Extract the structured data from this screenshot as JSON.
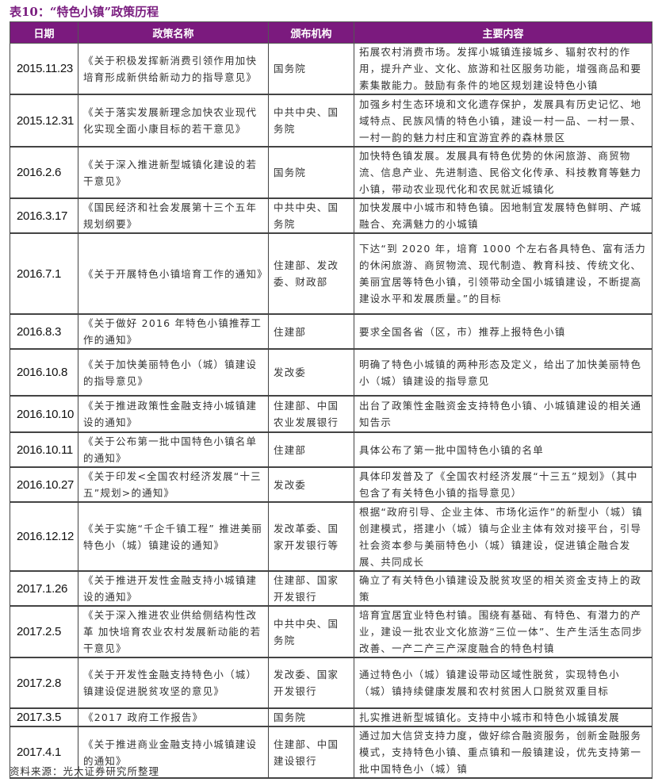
{
  "title": "表10：“特色小镇”政策历程",
  "headers": [
    "日期",
    "政策名称",
    "颁布机构",
    "主要内容"
  ],
  "rows": [
    {
      "date": "2015.11.23",
      "name": "《关于积极发挥新消费引领作用加快培育形成新供给新动力的指导意见》",
      "issuer": "国务院",
      "content": "拓展农村消费市场。发挥小城镇连接城乡、辐射农村的作用，提升产业、文化、旅游和社区服务功能，增强商品和要素集散能力。鼓励有条件的地区规划建设特色小镇"
    },
    {
      "date": "2015.12.31",
      "name": "《关于落实发展新理念加快农业现代化实现全面小康目标的若干意见》",
      "issuer": "中共中央、国务院",
      "content": "加强乡村生态环境和文化遗存保护，发展具有历史记忆、地域特点、民族风情的特色小镇，建设一村一品、一村一景、一村一韵的魅力村庄和宜游宜养的森林景区"
    },
    {
      "date": "2016.2.6",
      "name": "《关于深入推进新型城镇化建设的若干意见》",
      "issuer": "国务院",
      "content": "加快特色镇发展。发展具有特色优势的休闲旅游、商贸物流、信息产业、先进制造、民俗文化传承、科技教育等魅力小镇，带动农业现代化和农民就近城镇化"
    },
    {
      "date": "2016.3.17",
      "name": "《国民经济和社会发展第十三个五年规划纲要》",
      "issuer": "中共中央、国务院",
      "content": "加快发展中小城市和特色镇。因地制宜发展特色鲜明、产城融合、充满魅力的小城镇"
    },
    {
      "date": "2016.7.1",
      "name": "《关于开展特色小镇培育工作的通知》",
      "issuer": "住建部、发改委、财政部",
      "content": "下达“到 2020 年，培育 1000 个左右各具特色、富有活力的休闲旅游、商贸物流、现代制造、教育科技、传统文化、美丽宜居等特色小镇，引领带动全国小城镇建设，不断提高建设水平和发展质量。”的目标"
    },
    {
      "date": "2016.8.3",
      "name": "《关于做好 2016 年特色小镇推荐工作的通知》",
      "issuer": "住建部",
      "content": "要求全国各省（区，市）推荐上报特色小镇"
    },
    {
      "date": "2016.10.8",
      "name": "《关于加快美丽特色小（城）镇建设的指导意见》",
      "issuer": "发改委",
      "content": "明确了特色小城镇的两种形态及定义，给出了加快美丽特色小（城）镇建设的指导意见"
    },
    {
      "date": "2016.10.10",
      "name": "《关于推进政策性金融支持小城镇建设的通知》",
      "issuer": "住建部、中国农业发展银行",
      "content": "出台了政策性金融资金支持特色小镇、小城镇建设的相关通知告示"
    },
    {
      "date": "2016.10.11",
      "name": "《关于公布第一批中国特色小镇名单的通知》",
      "issuer": "住建部",
      "content": "具体公布了第一批中国特色小镇的名单"
    },
    {
      "date": "2016.10.27",
      "name": "《关于印发<全国农村经济发展“十三五”规划>的通知》",
      "issuer": "发改委",
      "content": "具体印发普及了《全国农村经济发展“十三五”规划》（其中包含了有关特色小镇的指导意见）"
    },
    {
      "date": "2016.12.12",
      "name": "《关于实施“千企千镇工程” 推进美丽特色小（城）镇建设的通知》",
      "issuer": "发改革委、国家开发银行等",
      "content": "根据“政府引导、企业主体、市场化运作”的新型小（城）镇创建模式，搭建小（城）镇与企业主体有效对接平台，引导社会资本参与美丽特色小（城）镇建设，促进镇企融合发展、共同成长"
    },
    {
      "date": "2017.1.26",
      "name": "《关于推进开发性金融支持小城镇建设的通知》",
      "issuer": "住建部、国家开发银行",
      "content": "确立了有关特色小镇建设及脱贫攻坚的相关资金支持上的政策"
    },
    {
      "date": "2017.2.5",
      "name": "《关于深入推进农业供给侧结构性改革 加快培育农业农村发展新动能的若干意见》",
      "issuer": "中共中央、国务院",
      "content": "培育宜居宜业特色村镇。围绕有基础、有特色、有潜力的产业，建设一批农业文化旅游“三位一体”、生产生活生态同步改善、一产二产三产深度融合的特色村镇"
    },
    {
      "date": "2017.2.8",
      "name": "《关于开发性金融支持特色小（城）镇建设促进脱贫攻坚的意见》",
      "issuer": "发改委、国家开发银行",
      "content": "通过特色小（城）镇建设带动区域性脱贫，实现特色小（城）镇持续健康发展和农村贫困人口脱贫双重目标"
    },
    {
      "date": "2017.3.5",
      "name": "《2017 政府工作报告》",
      "issuer": "国务院",
      "content": "扎实推进新型城镇化。支持中小城市和特色小城镇发展"
    },
    {
      "date": "2017.4.1",
      "name": "《关于推进商业金融支持小城镇建设的通知》",
      "issuer": "住建部、中国建设银行",
      "content": "通过加大信贷支持力度，做好综合融资服务，创新金融服务模式，支持特色小镇、重点镇和一般镇建设，优先支持第一批中国特色小（城）镇"
    }
  ],
  "source": "资料来源：光大证券研究所整理"
}
